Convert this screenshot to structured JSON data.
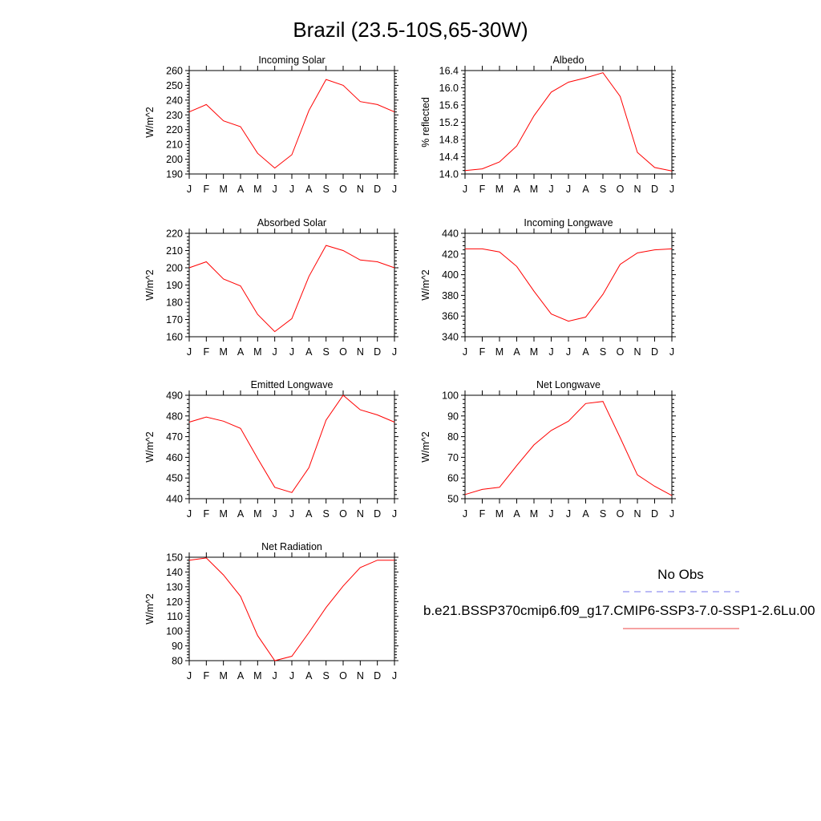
{
  "title": "Brazil (23.5-10S,65-30W)",
  "month_labels": [
    "J",
    "F",
    "M",
    "A",
    "M",
    "J",
    "J",
    "A",
    "S",
    "O",
    "N",
    "D",
    "J"
  ],
  "legend": {
    "obs_label": "No Obs",
    "obs_color": "#7777ee",
    "model_label": "b.e21.BSSP370cmip6.f09_g17.CMIP6-SSP3-7.0-SSP1-2.6Lu.00",
    "model_color": "#ee4444"
  },
  "line_color": "#ff0000",
  "chart_data": [
    {
      "type": "line",
      "title": "Incoming Solar",
      "ylabel": "W/m^2",
      "ylim": [
        190,
        260
      ],
      "yticks": [
        190,
        200,
        210,
        220,
        230,
        240,
        250,
        260
      ],
      "ytick_labels": [
        "190",
        "200",
        "210",
        "220",
        "230",
        "240",
        "250",
        "260"
      ],
      "values": [
        232,
        237,
        226,
        222,
        204,
        194,
        203,
        233,
        254,
        250,
        239,
        237,
        232
      ]
    },
    {
      "type": "line",
      "title": "Albedo",
      "ylabel": "% reflected",
      "ylim": [
        14.0,
        16.4
      ],
      "yticks": [
        14.0,
        14.4,
        14.8,
        15.2,
        15.6,
        16.0,
        16.4
      ],
      "ytick_labels": [
        "14.0",
        "14.4",
        "14.8",
        "15.2",
        "15.6",
        "16.0",
        "16.4"
      ],
      "values": [
        14.08,
        14.12,
        14.28,
        14.65,
        15.35,
        15.9,
        16.13,
        16.23,
        16.35,
        15.8,
        14.5,
        14.15,
        14.07
      ]
    },
    {
      "type": "line",
      "title": "Absorbed Solar",
      "ylabel": "W/m^2",
      "ylim": [
        160,
        220
      ],
      "yticks": [
        160,
        170,
        180,
        190,
        200,
        210,
        220
      ],
      "ytick_labels": [
        "160",
        "170",
        "180",
        "190",
        "200",
        "210",
        "220"
      ],
      "values": [
        200,
        203.5,
        193.5,
        189.5,
        173,
        163,
        170.5,
        195,
        213,
        210,
        204.5,
        203.5,
        200
      ]
    },
    {
      "type": "line",
      "title": "Incoming Longwave",
      "ylabel": "W/m^2",
      "ylim": [
        340,
        440
      ],
      "yticks": [
        340,
        360,
        380,
        400,
        420,
        440
      ],
      "ytick_labels": [
        "340",
        "360",
        "380",
        "400",
        "420",
        "440"
      ],
      "values": [
        425,
        425,
        422,
        408,
        384,
        362,
        355,
        359,
        381,
        410,
        421,
        424,
        425
      ]
    },
    {
      "type": "line",
      "title": "Emitted Longwave",
      "ylabel": "W/m^2",
      "ylim": [
        440,
        490
      ],
      "yticks": [
        440,
        450,
        460,
        470,
        480,
        490
      ],
      "ytick_labels": [
        "440",
        "450",
        "460",
        "470",
        "480",
        "490"
      ],
      "values": [
        477,
        479.5,
        477.5,
        474,
        459.5,
        445.5,
        443,
        455,
        478,
        490,
        483,
        480.5,
        477
      ]
    },
    {
      "type": "line",
      "title": "Net Longwave",
      "ylabel": "W/m^2",
      "ylim": [
        50,
        100
      ],
      "yticks": [
        50,
        60,
        70,
        80,
        90,
        100
      ],
      "ytick_labels": [
        "50",
        "60",
        "70",
        "80",
        "90",
        "100"
      ],
      "values": [
        52,
        54.5,
        55.5,
        66,
        76,
        83,
        87.5,
        96,
        97,
        79.5,
        61.5,
        56,
        51.5
      ]
    },
    {
      "type": "line",
      "title": "Net Radiation",
      "ylabel": "W/m^2",
      "ylim": [
        80,
        150
      ],
      "yticks": [
        80,
        90,
        100,
        110,
        120,
        130,
        140,
        150
      ],
      "ytick_labels": [
        "80",
        "90",
        "100",
        "110",
        "120",
        "130",
        "140",
        "150"
      ],
      "values": [
        148,
        149.5,
        138,
        123.5,
        97,
        80,
        83,
        99,
        116,
        130.5,
        143,
        148,
        148
      ]
    }
  ]
}
